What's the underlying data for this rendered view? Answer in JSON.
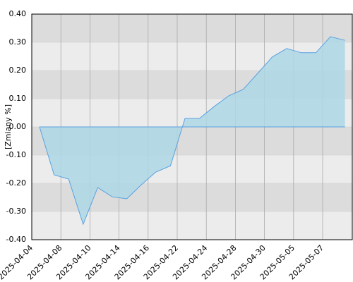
{
  "chart_data": {
    "type": "area",
    "y_label": "[Zmiany %]",
    "categories": [
      "2025-04-04",
      null,
      "2025-04-08",
      null,
      "2025-04-10",
      null,
      "2025-04-14",
      null,
      "2025-04-16",
      null,
      "2025-04-22",
      null,
      "2025-04-24",
      null,
      "2025-04-28",
      null,
      "2025-04-30",
      null,
      "2025-05-05",
      null,
      "2025-05-07",
      null
    ],
    "values": [
      0,
      -0.17,
      -0.185,
      -0.345,
      -0.215,
      -0.248,
      -0.255,
      -0.205,
      -0.16,
      -0.138,
      0.03,
      0.03,
      0.072,
      0.11,
      0.133,
      0.19,
      0.248,
      0.278,
      0.263,
      0.263,
      0.32,
      0.307
    ],
    "color": "#add8e6",
    "line_color": "#5aa0e0",
    "ylim": [
      -0.4,
      0.4
    ],
    "yticks": [
      {
        "value": -0.4,
        "label": "-0.40"
      },
      {
        "value": -0.3,
        "label": "-0.30"
      },
      {
        "value": -0.2,
        "label": "-0.20"
      },
      {
        "value": -0.1,
        "label": "-0.10"
      },
      {
        "value": 0,
        "label": "0.00"
      },
      {
        "value": 0.1,
        "label": "0.10"
      },
      {
        "value": 0.2,
        "label": "0.20"
      },
      {
        "value": 0.3,
        "label": "0.30"
      },
      {
        "value": 0.4,
        "label": "0.40"
      }
    ],
    "grid": true
  }
}
